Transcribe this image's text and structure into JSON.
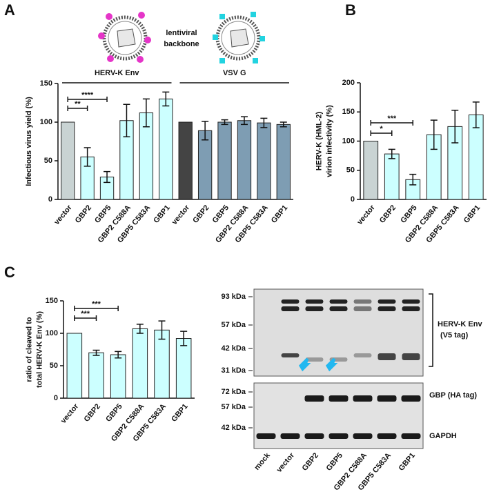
{
  "panels": [
    "A",
    "B",
    "C"
  ],
  "illustration": {
    "label": [
      "lentiviral",
      "backbone"
    ]
  },
  "chart_data": [
    {
      "type": "bar",
      "ylabel": "Infectious virus yield (%)",
      "categories": [
        "vector",
        "GBP2",
        "GBP5",
        "GBP2 C588A",
        "GBP5 C583A",
        "GBP1",
        "vector",
        "GBP2",
        "GBP5",
        "GBP2 C588A",
        "GBP5 C583A",
        "GBP1"
      ],
      "values": [
        100,
        55,
        29,
        102,
        112,
        130,
        100,
        89,
        100,
        102,
        99,
        97
      ],
      "errors": [
        0,
        12,
        7,
        21,
        18,
        9,
        0,
        12,
        3,
        5,
        6,
        3
      ],
      "colors": [
        "#c9d3d3",
        "#ccffff",
        "#ccffff",
        "#ccffff",
        "#ccffff",
        "#ccffff",
        "#444444",
        "#7e9db3",
        "#7e9db3",
        "#7e9db3",
        "#7e9db3",
        "#7e9db3"
      ],
      "groups": [
        {
          "name": "HERV-K Env",
          "color": "#e535c8"
        },
        {
          "name": "VSV G",
          "color": "#22d3e0"
        }
      ],
      "annotations": [
        "**",
        "****"
      ],
      "ylim": [
        0,
        150
      ],
      "yticks": [
        0,
        50,
        100,
        150
      ]
    },
    {
      "type": "bar",
      "ylabel": [
        "HERV-K (HML-2)",
        "virion infectivity (%)"
      ],
      "categories": [
        "vector",
        "GBP2",
        "GBP5",
        "GBP2 C588A",
        "GBP5 C583A",
        "GBP1"
      ],
      "values": [
        100,
        78,
        34,
        111,
        125,
        145
      ],
      "errors": [
        0,
        8,
        9,
        25,
        28,
        22
      ],
      "colors": [
        "#c9d3d3",
        "#ccffff",
        "#ccffff",
        "#ccffff",
        "#ccffff",
        "#ccffff"
      ],
      "annotations": [
        "*",
        "***"
      ],
      "ylim": [
        0,
        200
      ],
      "yticks": [
        0,
        50,
        100,
        150,
        200
      ]
    },
    {
      "type": "bar",
      "ylabel": [
        "ratio of cleaved to",
        "total HERV-K Env (%)"
      ],
      "categories": [
        "vector",
        "GBP2",
        "GBP5",
        "GBP2 C588A",
        "GBP5 C583A",
        "GBP1"
      ],
      "values": [
        100,
        70,
        67,
        107,
        105,
        92
      ],
      "errors": [
        0,
        4,
        5,
        7,
        14,
        11
      ],
      "colors": [
        "#ccffff",
        "#ccffff",
        "#ccffff",
        "#ccffff",
        "#ccffff",
        "#ccffff"
      ],
      "annotations": [
        "***",
        "***"
      ],
      "ylim": [
        0,
        150
      ],
      "yticks": [
        0,
        50,
        100,
        150
      ]
    }
  ],
  "blot": {
    "markers_top": [
      "93 kDa",
      "57 kDa",
      "42 kDa",
      "31 kDa"
    ],
    "markers_bottom": [
      "72 kDa",
      "57 kDa",
      "42 kDa"
    ],
    "lanes": [
      "mock",
      "vector",
      "GBP2",
      "GBP5",
      "GBP2 C588A",
      "GBP5 C583A",
      "GBP1"
    ],
    "labels": [
      "HERV-K Env",
      "(V5 tag)",
      "GBP (HA tag)",
      "GAPDH"
    ]
  }
}
